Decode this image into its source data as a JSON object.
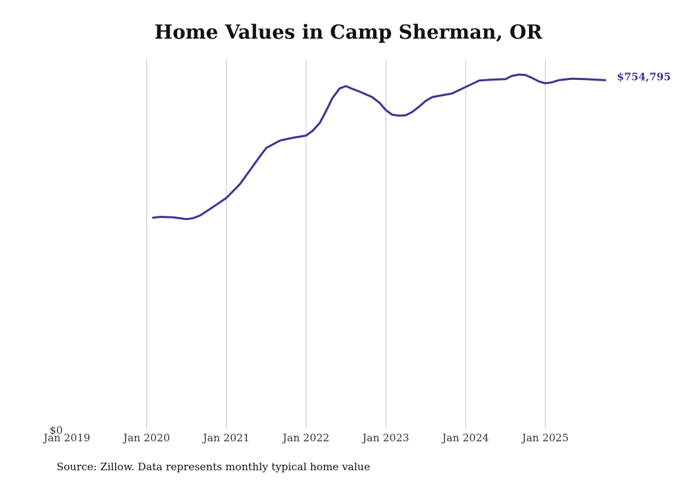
{
  "chart_data": {
    "type": "line",
    "title": "Home Values in Camp Sherman, OR",
    "xlabel": "",
    "ylabel": "",
    "x_tick_labels": [
      "Jan 2019",
      "Jan 2020",
      "Jan 2021",
      "Jan 2022",
      "Jan 2023",
      "Jan 2024",
      "Jan 2025"
    ],
    "y_tick_label": "$0",
    "ylim": [
      0,
      800000
    ],
    "xlim": [
      2019.0,
      2025.8
    ],
    "grid": "vertical",
    "end_label": "$754,795",
    "color": "#3a3791",
    "series": [
      {
        "name": "Typical home value",
        "x": [
          2020.08,
          2020.17,
          2020.33,
          2020.5,
          2020.58,
          2020.67,
          2020.83,
          2021.0,
          2021.17,
          2021.33,
          2021.42,
          2021.5,
          2021.67,
          2021.83,
          2022.0,
          2022.08,
          2022.17,
          2022.25,
          2022.33,
          2022.42,
          2022.5,
          2022.58,
          2022.67,
          2022.83,
          2022.92,
          2023.0,
          2023.08,
          2023.17,
          2023.25,
          2023.33,
          2023.42,
          2023.5,
          2023.58,
          2023.67,
          2023.83,
          2024.0,
          2024.17,
          2024.33,
          2024.5,
          2024.58,
          2024.67,
          2024.75,
          2024.83,
          2024.92,
          2025.0,
          2025.08,
          2025.17,
          2025.33,
          2025.5,
          2025.75
        ],
        "values": [
          457000,
          459000,
          458000,
          454000,
          456000,
          462000,
          480000,
          500000,
          530000,
          568000,
          590000,
          608000,
          624000,
          630000,
          635000,
          645000,
          662000,
          688000,
          716000,
          737000,
          742000,
          736000,
          730000,
          718000,
          706000,
          690000,
          680000,
          678000,
          679000,
          686000,
          698000,
          710000,
          718000,
          721000,
          726000,
          740000,
          754000,
          756000,
          757000,
          764000,
          767000,
          766000,
          760000,
          752000,
          748000,
          750000,
          755000,
          758000,
          757000,
          754795
        ]
      }
    ]
  },
  "source_text": "Source: Zillow. Data represents monthly typical home value"
}
